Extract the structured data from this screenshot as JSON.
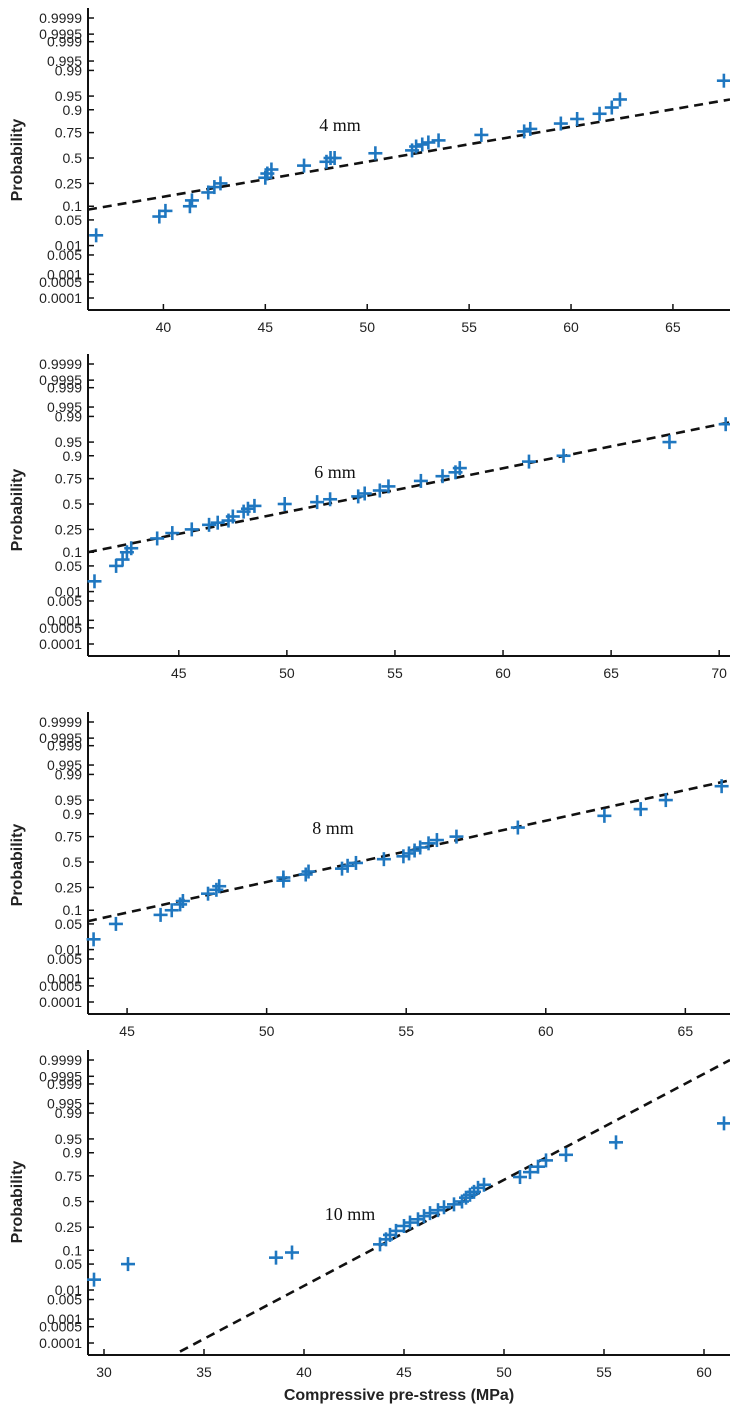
{
  "chart_data": [
    {
      "type": "scatter",
      "subtitle": "4 mm",
      "ylabel": "Probability",
      "xlabel": "",
      "y_scale": "normal-probability",
      "xlim": [
        36.3,
        67.8
      ],
      "x_ticks": [
        40,
        45,
        50,
        55,
        60,
        65
      ],
      "fit_line": [
        [
          36.3,
          0.085
        ],
        [
          67.8,
          0.94
        ]
      ],
      "points": [
        [
          36.7,
          0.02
        ],
        [
          39.8,
          0.06
        ],
        [
          40.1,
          0.08
        ],
        [
          41.3,
          0.1
        ],
        [
          41.4,
          0.13
        ],
        [
          42.2,
          0.18
        ],
        [
          42.5,
          0.22
        ],
        [
          42.8,
          0.25
        ],
        [
          45.0,
          0.3
        ],
        [
          45.1,
          0.34
        ],
        [
          45.3,
          0.38
        ],
        [
          46.9,
          0.42
        ],
        [
          48.0,
          0.46
        ],
        [
          48.2,
          0.5
        ],
        [
          48.4,
          0.5
        ],
        [
          50.4,
          0.55
        ],
        [
          52.2,
          0.58
        ],
        [
          52.4,
          0.62
        ],
        [
          52.7,
          0.64
        ],
        [
          53.0,
          0.66
        ],
        [
          53.5,
          0.68
        ],
        [
          55.6,
          0.73
        ],
        [
          57.7,
          0.76
        ],
        [
          58.0,
          0.78
        ],
        [
          59.5,
          0.82
        ],
        [
          60.3,
          0.85
        ],
        [
          61.4,
          0.88
        ],
        [
          62.0,
          0.91
        ],
        [
          62.4,
          0.94
        ],
        [
          67.5,
          0.98
        ]
      ]
    },
    {
      "type": "scatter",
      "subtitle": "6 mm",
      "ylabel": "Probability",
      "xlabel": "",
      "y_scale": "normal-probability",
      "xlim": [
        40.8,
        70.5
      ],
      "x_ticks": [
        45,
        50,
        55,
        60,
        65,
        70
      ],
      "fit_line": [
        [
          40.8,
          0.1
        ],
        [
          70.5,
          0.985
        ]
      ],
      "points": [
        [
          41.1,
          0.02
        ],
        [
          42.1,
          0.05
        ],
        [
          42.4,
          0.07
        ],
        [
          42.6,
          0.1
        ],
        [
          42.8,
          0.12
        ],
        [
          44.0,
          0.18
        ],
        [
          44.7,
          0.22
        ],
        [
          45.6,
          0.25
        ],
        [
          46.4,
          0.29
        ],
        [
          46.8,
          0.31
        ],
        [
          47.3,
          0.33
        ],
        [
          47.5,
          0.37
        ],
        [
          48.0,
          0.42
        ],
        [
          48.2,
          0.45
        ],
        [
          48.5,
          0.48
        ],
        [
          49.9,
          0.5
        ],
        [
          51.4,
          0.52
        ],
        [
          52.0,
          0.55
        ],
        [
          53.3,
          0.58
        ],
        [
          53.6,
          0.61
        ],
        [
          54.3,
          0.64
        ],
        [
          54.7,
          0.68
        ],
        [
          56.2,
          0.73
        ],
        [
          57.2,
          0.77
        ],
        [
          57.8,
          0.8
        ],
        [
          58.0,
          0.83
        ],
        [
          61.2,
          0.87
        ],
        [
          62.8,
          0.9
        ],
        [
          67.7,
          0.95
        ],
        [
          70.3,
          0.983
        ]
      ]
    },
    {
      "type": "scatter",
      "subtitle": "8 mm",
      "ylabel": "Probability",
      "xlabel": "",
      "y_scale": "normal-probability",
      "xlim": [
        43.6,
        66.6
      ],
      "x_ticks": [
        45,
        50,
        55,
        60,
        65
      ],
      "fit_line": [
        [
          43.6,
          0.058
        ],
        [
          66.6,
          0.985
        ]
      ],
      "points": [
        [
          43.8,
          0.02
        ],
        [
          44.6,
          0.05
        ],
        [
          46.2,
          0.08
        ],
        [
          46.6,
          0.1
        ],
        [
          46.9,
          0.13
        ],
        [
          47.0,
          0.15
        ],
        [
          47.9,
          0.2
        ],
        [
          48.2,
          0.23
        ],
        [
          48.3,
          0.26
        ],
        [
          50.6,
          0.31
        ],
        [
          50.6,
          0.34
        ],
        [
          51.4,
          0.37
        ],
        [
          51.5,
          0.4
        ],
        [
          52.7,
          0.43
        ],
        [
          52.9,
          0.46
        ],
        [
          53.2,
          0.49
        ],
        [
          54.2,
          0.53
        ],
        [
          54.9,
          0.56
        ],
        [
          55.1,
          0.59
        ],
        [
          55.3,
          0.62
        ],
        [
          55.5,
          0.65
        ],
        [
          55.8,
          0.69
        ],
        [
          56.1,
          0.72
        ],
        [
          56.8,
          0.75
        ],
        [
          59.0,
          0.82
        ],
        [
          62.1,
          0.89
        ],
        [
          63.4,
          0.92
        ],
        [
          64.3,
          0.95
        ],
        [
          66.3,
          0.978
        ]
      ]
    },
    {
      "type": "scatter",
      "subtitle": "10 mm",
      "ylabel": "Probability",
      "xlabel": "Compressive pre-stress (MPa)",
      "y_scale": "normal-probability",
      "xlim": [
        29.2,
        61.3
      ],
      "x_ticks": [
        30,
        35,
        40,
        45,
        50,
        55,
        60
      ],
      "fit_line": [
        [
          33.8,
          4e-05
        ],
        [
          61.3,
          0.9999
        ]
      ],
      "points": [
        [
          29.5,
          0.02
        ],
        [
          31.2,
          0.05
        ],
        [
          38.6,
          0.07
        ],
        [
          39.4,
          0.09
        ],
        [
          43.8,
          0.13
        ],
        [
          44.1,
          0.16
        ],
        [
          44.3,
          0.19
        ],
        [
          44.6,
          0.22
        ],
        [
          45.0,
          0.26
        ],
        [
          45.3,
          0.29
        ],
        [
          45.7,
          0.32
        ],
        [
          46.0,
          0.35
        ],
        [
          46.3,
          0.38
        ],
        [
          46.7,
          0.41
        ],
        [
          47.0,
          0.44
        ],
        [
          47.5,
          0.47
        ],
        [
          47.9,
          0.5
        ],
        [
          48.1,
          0.54
        ],
        [
          48.3,
          0.57
        ],
        [
          48.5,
          0.6
        ],
        [
          48.7,
          0.64
        ],
        [
          49.0,
          0.67
        ],
        [
          50.8,
          0.74
        ],
        [
          51.3,
          0.78
        ],
        [
          51.7,
          0.82
        ],
        [
          52.1,
          0.86
        ],
        [
          53.1,
          0.89
        ],
        [
          55.6,
          0.94
        ],
        [
          61.0,
          0.98
        ]
      ]
    }
  ],
  "y_tick_labels": [
    "0.9999",
    "0.9995",
    "0.999",
    "0.995",
    "0.99",
    "0.95",
    "0.9",
    "0.75",
    "0.5",
    "0.25",
    "0.1",
    "0.05",
    "0.01",
    "0.005",
    "0.001",
    "0.0005",
    "0.0001"
  ],
  "y_tick_values": [
    0.9999,
    0.9995,
    0.999,
    0.995,
    0.99,
    0.95,
    0.9,
    0.75,
    0.5,
    0.25,
    0.1,
    0.05,
    0.01,
    0.005,
    0.001,
    0.0005,
    0.0001
  ],
  "colors": {
    "points": "#1f77c0",
    "fit_line": "#111111",
    "axes": "#111111"
  }
}
